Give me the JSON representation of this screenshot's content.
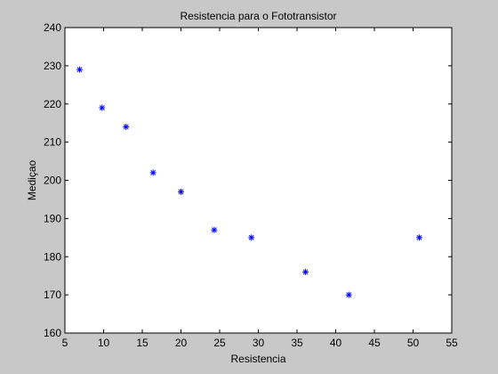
{
  "colors": {
    "figure_bg": "#c8c8c8",
    "axes_bg": "#ffffff",
    "marker": "#0000ff",
    "axis": "#000000"
  },
  "chart_data": {
    "type": "scatter",
    "title": "Resistencia para o Fototransistor",
    "xlabel": "Resistencia",
    "ylabel": "Mediçao",
    "xlim": [
      5,
      55
    ],
    "ylim": [
      160,
      240
    ],
    "xticks": [
      5,
      10,
      15,
      20,
      25,
      30,
      35,
      40,
      45,
      50,
      55
    ],
    "yticks": [
      160,
      170,
      180,
      190,
      200,
      210,
      220,
      230,
      240
    ],
    "grid": false,
    "marker": "asterisk",
    "series": [
      {
        "x": [
          6.9,
          9.8,
          12.9,
          16.4,
          20.0,
          24.3,
          29.1,
          36.1,
          41.7,
          50.8
        ],
        "y": [
          229,
          219,
          214,
          202,
          197,
          187,
          185,
          176,
          170,
          185
        ]
      }
    ]
  }
}
